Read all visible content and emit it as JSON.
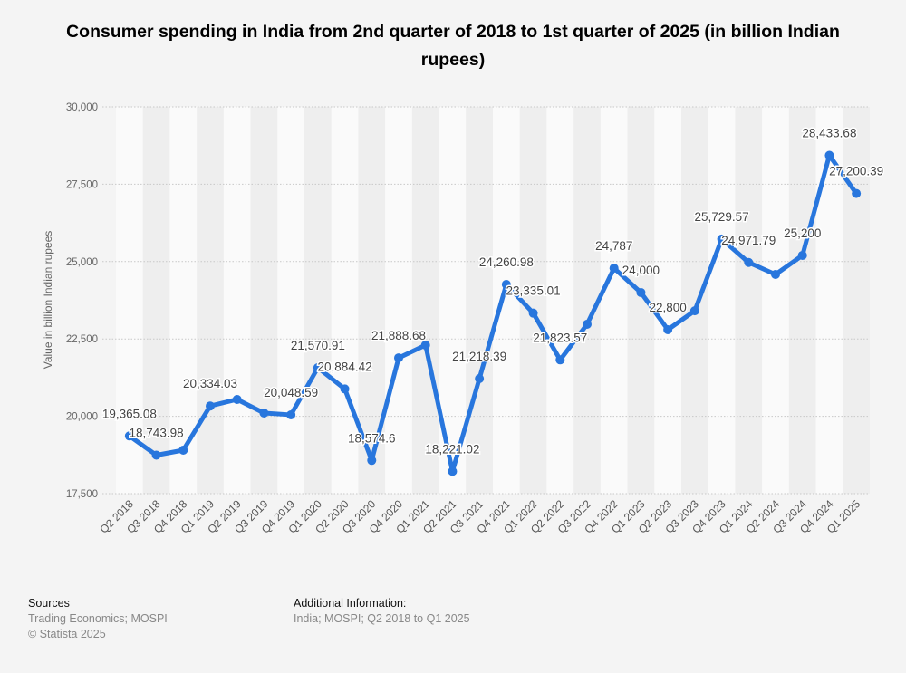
{
  "chart_data": {
    "type": "line",
    "title": "Consumer spending in India from 2nd quarter of 2018 to 1st quarter of 2025 (in billion Indian rupees)",
    "xlabel": "",
    "ylabel": "Value in billion Indian rupees",
    "ylim": [
      17500,
      30000
    ],
    "yticks": [
      17500,
      20000,
      22500,
      25000,
      27500,
      30000
    ],
    "ytick_labels": [
      "17,500",
      "20,000",
      "22,500",
      "25,000",
      "27,500",
      "30,000"
    ],
    "grid": true,
    "line_color": "#2876dd",
    "categories": [
      "Q2 2018",
      "Q3 2018",
      "Q4 2018",
      "Q1 2019",
      "Q2 2019",
      "Q3 2019",
      "Q4 2019",
      "Q1 2020",
      "Q2 2020",
      "Q3 2020",
      "Q4 2020",
      "Q1 2021",
      "Q2 2021",
      "Q3 2021",
      "Q4 2021",
      "Q1 2022",
      "Q2 2022",
      "Q3 2022",
      "Q4 2022",
      "Q1 2023",
      "Q2 2023",
      "Q3 2023",
      "Q4 2023",
      "Q1 2024",
      "Q2 2024",
      "Q3 2024",
      "Q4 2024",
      "Q1 2025"
    ],
    "values": [
      19365.08,
      18743.98,
      18905,
      20334.03,
      20545,
      20105,
      20048.59,
      21570.91,
      20884.42,
      18574.6,
      21888.68,
      22300,
      18221.02,
      21218.39,
      24260.98,
      23335.01,
      21823.57,
      22975,
      24787,
      24000,
      22800,
      23410,
      25729.57,
      24971.79,
      24585,
      25200,
      28433.68,
      27200.39
    ],
    "data_labels": [
      "19,365.08",
      "18,743.98",
      "",
      "20,334.03",
      "",
      "",
      "20,048.59",
      "21,570.91",
      "20,884.42",
      "18,574.6",
      "21,888.68",
      "",
      "18,221.02",
      "21,218.39",
      "24,260.98",
      "23,335.01",
      "21,823.57",
      "",
      "24,787",
      "24,000",
      "22,800",
      "",
      "25,729.57",
      "24,971.79",
      "",
      "25,200",
      "28,433.68",
      "27,200.39"
    ]
  },
  "footer": {
    "sources_heading": "Sources",
    "sources_text": "Trading Economics; MOSPI",
    "copyright": "© Statista 2025",
    "additional_heading": "Additional Information:",
    "additional_text": "India; MOSPI; Q2 2018 to Q1 2025"
  }
}
